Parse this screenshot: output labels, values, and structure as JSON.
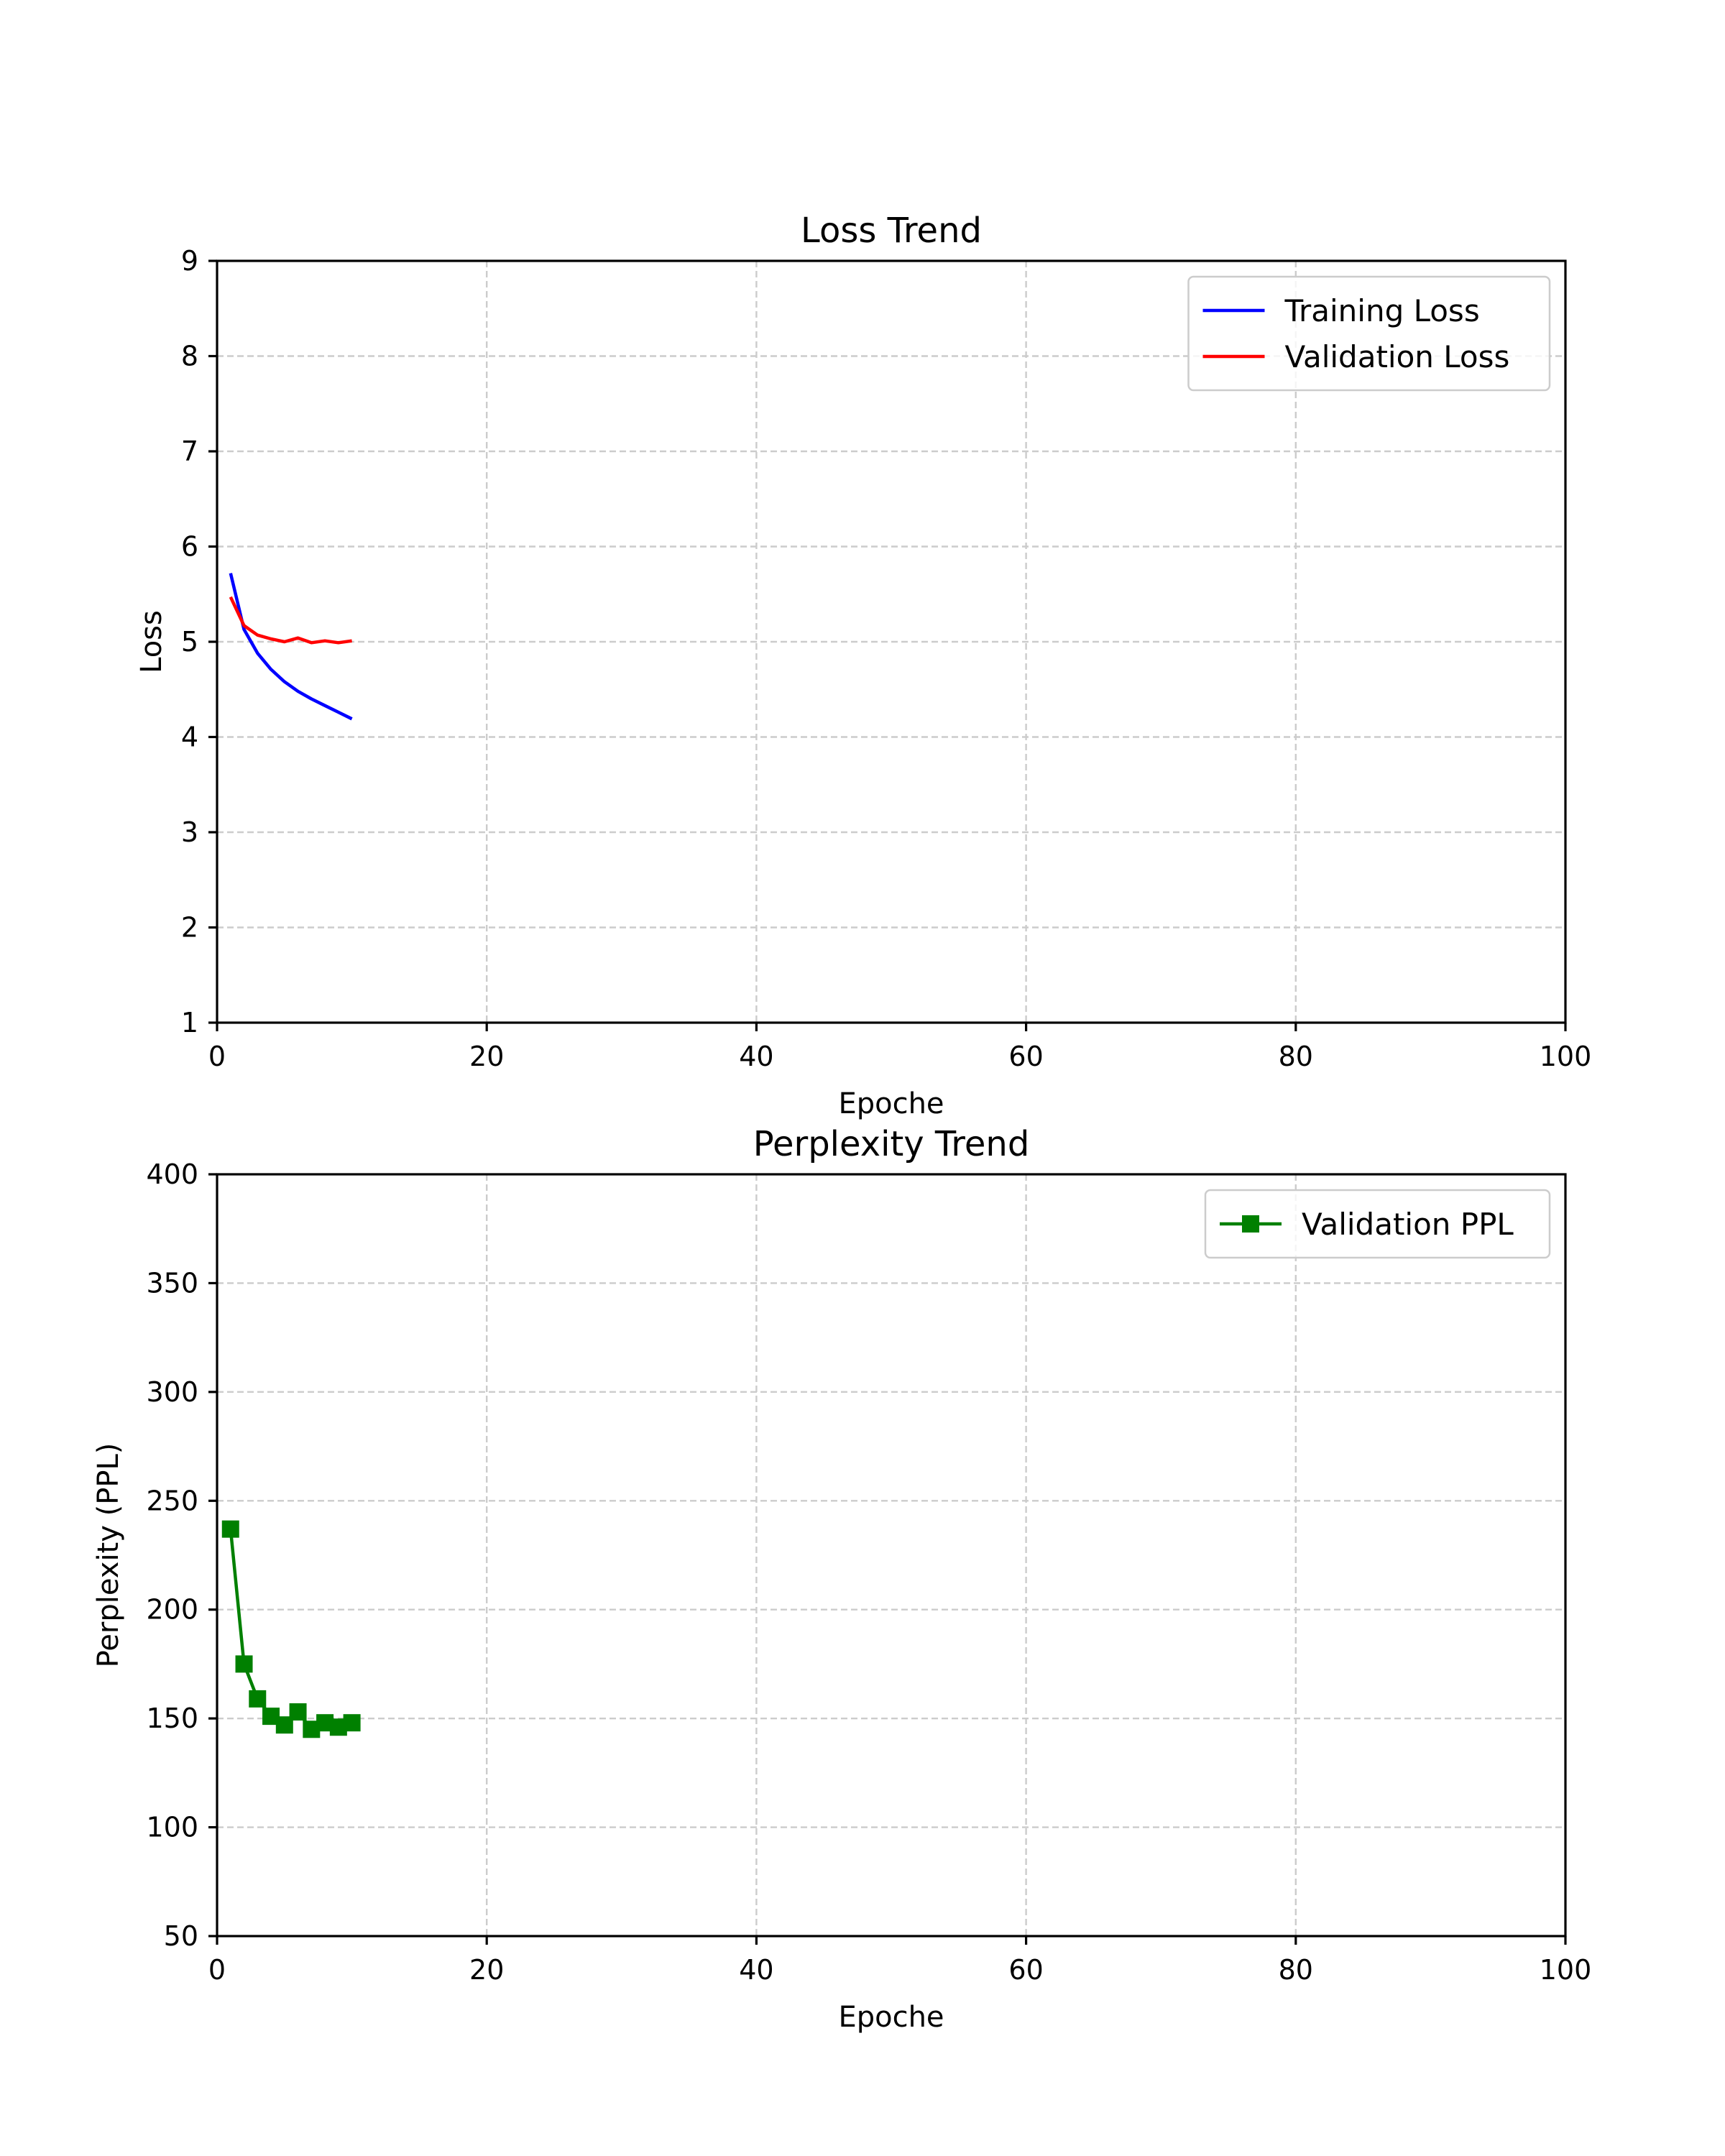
{
  "chart_data": [
    {
      "type": "line",
      "title": "Loss Trend",
      "xlabel": "Epoche",
      "ylabel": "Loss",
      "xlim": [
        0,
        100
      ],
      "ylim": [
        1,
        9
      ],
      "xticks": [
        "0",
        "20",
        "40",
        "60",
        "80",
        "100"
      ],
      "yticks": [
        "1",
        "2",
        "3",
        "4",
        "5",
        "6",
        "7",
        "8",
        "9"
      ],
      "grid": true,
      "legend_position": "top-right",
      "x": [
        1,
        2,
        3,
        4,
        5,
        6,
        7,
        8,
        9,
        10
      ],
      "series": [
        {
          "name": "Training Loss",
          "color": "#0000ff",
          "marker": "none",
          "values": [
            5.72,
            5.13,
            4.88,
            4.71,
            4.58,
            4.48,
            4.4,
            4.33,
            4.26,
            4.19
          ]
        },
        {
          "name": "Validation Loss",
          "color": "#ff0000",
          "marker": "none",
          "values": [
            5.47,
            5.17,
            5.07,
            5.03,
            5.0,
            5.04,
            4.99,
            5.01,
            4.99,
            5.01
          ]
        }
      ]
    },
    {
      "type": "line",
      "title": "Perplexity Trend",
      "xlabel": "Epoche",
      "ylabel": "Perplexity (PPL)",
      "xlim": [
        0,
        100
      ],
      "ylim": [
        50,
        400
      ],
      "xticks": [
        "0",
        "20",
        "40",
        "60",
        "80",
        "100"
      ],
      "yticks": [
        "50",
        "100",
        "150",
        "200",
        "250",
        "300",
        "350",
        "400"
      ],
      "grid": true,
      "legend_position": "top-right",
      "x": [
        1,
        2,
        3,
        4,
        5,
        6,
        7,
        8,
        9,
        10
      ],
      "series": [
        {
          "name": "Validation PPL",
          "color": "#008000",
          "marker": "square",
          "values": [
            237,
            175,
            159,
            151,
            147,
            153,
            145,
            148,
            146,
            148
          ]
        }
      ]
    }
  ]
}
